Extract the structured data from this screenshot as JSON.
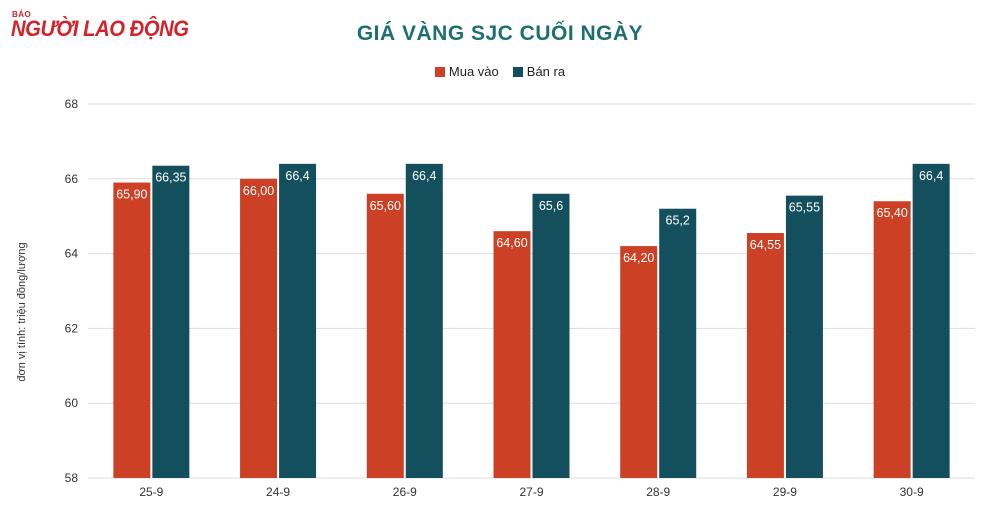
{
  "logo": {
    "small": "BÁO",
    "name": "NGƯỜI LAO ĐỘNG"
  },
  "colors": {
    "buy": "#cc4125",
    "sell": "#134f5c",
    "grid": "#dddddd",
    "title": "#1e6f6f"
  },
  "chart_data": {
    "type": "bar",
    "title": "GIÁ VÀNG SJC CUỐI NGÀY",
    "ylabel": "đơn vị tính: triệu đồng/lượng",
    "xlabel": "",
    "ylim": [
      58,
      68
    ],
    "yticks": [
      58,
      60,
      62,
      64,
      66,
      68
    ],
    "grid": true,
    "legend_position": "top-center",
    "categories": [
      "25-9",
      "24-9",
      "26-9",
      "27-9",
      "28-9",
      "29-9",
      "30-9"
    ],
    "series": [
      {
        "name": "Mua vào",
        "values": [
          65.9,
          66.0,
          65.6,
          64.6,
          64.2,
          64.55,
          65.4
        ],
        "labels": [
          "65,90",
          "66,00",
          "65,60",
          "64,60",
          "64,20",
          "64,55",
          "65,40"
        ]
      },
      {
        "name": "Bán ra",
        "values": [
          66.35,
          66.4,
          66.4,
          65.6,
          65.2,
          65.55,
          66.4
        ],
        "labels": [
          "66,35",
          "66,4",
          "66,4",
          "65,6",
          "65,2",
          "65,55",
          "66,4"
        ]
      }
    ]
  }
}
